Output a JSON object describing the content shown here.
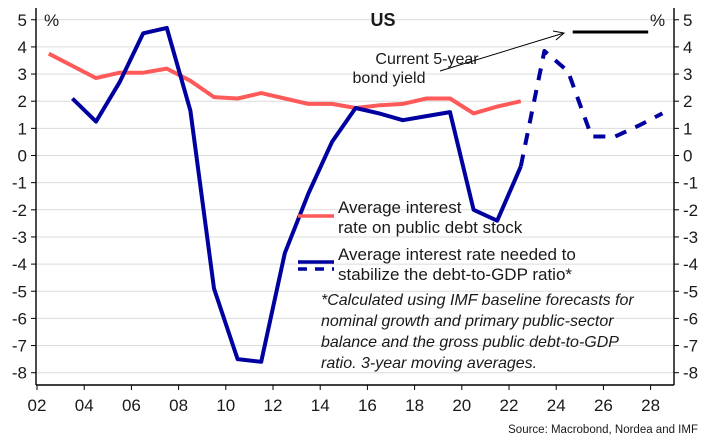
{
  "chart_data": {
    "type": "line",
    "title": "US",
    "ylabel_left": "%",
    "ylabel_right": "%",
    "ylim": [
      -8.4,
      5.4
    ],
    "yticks": [
      5,
      4,
      3,
      2,
      1,
      0,
      -1,
      -2,
      -3,
      -4,
      -5,
      -6,
      -7,
      -8
    ],
    "xlim": [
      2002,
      2029
    ],
    "xticks": [
      2002,
      2004,
      2006,
      2008,
      2010,
      2012,
      2014,
      2016,
      2018,
      2020,
      2022,
      2024,
      2026,
      2028
    ],
    "xtick_labels": [
      "02",
      "04",
      "06",
      "08",
      "10",
      "12",
      "14",
      "16",
      "18",
      "20",
      "22",
      "24",
      "26",
      "28"
    ],
    "grid": true,
    "series": [
      {
        "name": "Average interest rate on public debt stock",
        "color": "#FF5A5A",
        "style": "solid",
        "x": [
          2002.5,
          2003.5,
          2004.5,
          2005.5,
          2006.5,
          2007.5,
          2008.5,
          2009.5,
          2010.5,
          2011.5,
          2012.5,
          2013.5,
          2014.5,
          2015.5,
          2016.5,
          2017.5,
          2018.5,
          2019.5,
          2020.5,
          2021.5,
          2022.5
        ],
        "y": [
          3.75,
          3.3,
          2.85,
          3.05,
          3.05,
          3.2,
          2.75,
          2.15,
          2.1,
          2.3,
          2.1,
          1.9,
          1.9,
          1.75,
          1.85,
          1.9,
          2.1,
          2.1,
          1.55,
          1.8,
          2.0
        ]
      },
      {
        "name": "Average interest rate needed to stabilize the debt-to-GDP ratio*",
        "color": "#0000A0",
        "style": "solid",
        "x": [
          2003.5,
          2004.5,
          2005.5,
          2006.5,
          2007.5,
          2008.5,
          2009.5,
          2010.5,
          2011.5,
          2012.5,
          2013.5,
          2014.5,
          2015.5,
          2016.5,
          2017.5,
          2018.5,
          2019.5,
          2020.5,
          2021.5,
          2022.5
        ],
        "y": [
          2.1,
          1.25,
          2.7,
          4.5,
          4.7,
          1.65,
          -4.9,
          -7.5,
          -7.6,
          -3.6,
          -1.4,
          0.5,
          1.75,
          1.55,
          1.3,
          1.45,
          1.6,
          -2.0,
          -2.4,
          -0.4
        ]
      },
      {
        "name": "Average interest rate needed to stabilize the debt-to-GDP ratio* (forecast)",
        "color": "#0000A0",
        "style": "dashed",
        "x": [
          2022.5,
          2023.5,
          2024.5,
          2025.5,
          2026.5,
          2027.5,
          2028.5
        ],
        "y": [
          -0.4,
          3.85,
          3.1,
          0.7,
          0.7,
          1.1,
          1.55
        ]
      },
      {
        "name": "Current 5-year bond yield",
        "color": "#000000",
        "style": "solid",
        "x": [
          2024.7,
          2027.9
        ],
        "y": [
          4.55,
          4.55
        ]
      }
    ],
    "annotations": {
      "bond_yield_line1": "Current 5-year",
      "bond_yield_line2": "bond yield"
    },
    "legend": {
      "placement": "center-right",
      "items": [
        {
          "lines": [
            "Average interest",
            "rate on public debt stock"
          ],
          "color": "#FF5A5A",
          "style": "solid"
        },
        {
          "lines": [
            "Average interest rate needed to",
            "stabilize the debt-to-GDP ratio*"
          ],
          "color": "#0000A0",
          "style": "solid+dashed"
        }
      ]
    },
    "footnote": [
      "*Calculated using IMF baseline forecasts for",
      "nominal growth and primary public-sector",
      "balance and the gross public debt-to-GDP",
      "ratio. 3-year moving averages."
    ],
    "source": "Source: Macrobond, Nordea and IMF"
  }
}
